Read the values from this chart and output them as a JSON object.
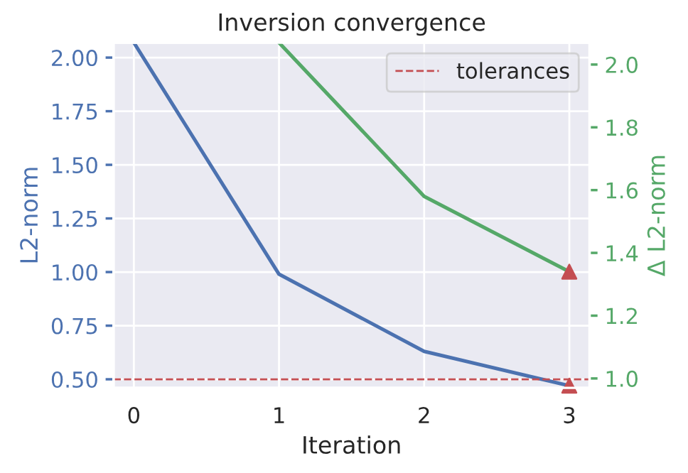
{
  "chart_data": {
    "type": "line",
    "title": "Inversion convergence",
    "xlabel": "Iteration",
    "ylabel": "L2-norm",
    "y2label": "Δ L2-norm",
    "x": [
      0,
      1,
      2,
      3
    ],
    "series": [
      {
        "color": "#4c72b0",
        "values": [
          2.07,
          0.99,
          0.63,
          0.47
        ]
      },
      {
        "color": "#55a868",
        "axis": "y2",
        "values": [
          null,
          2.07,
          1.58,
          1.34
        ]
      },
      {
        "type": "scatter",
        "color": "#c44e52",
        "marker": "triangle",
        "x": [
          3
        ],
        "values": [
          0.47
        ]
      },
      {
        "type": "scatter",
        "color": "#c44e52",
        "marker": "triangle",
        "axis": "y2",
        "x": [
          3
        ],
        "values": [
          1.34
        ]
      }
    ],
    "ref_lines": [
      {
        "axis": "y",
        "value": 0.5,
        "label": "tolerances",
        "color": "#c44e52",
        "line_style": "dashed"
      }
    ],
    "xlim": [
      -0.14,
      3.14
    ],
    "xticks": [
      0,
      1,
      2,
      3
    ],
    "ylim": [
      0.46,
      2.07
    ],
    "yticks": [
      {
        "value": 0.5,
        "label": "0.50"
      },
      {
        "value": 0.75,
        "label": "0.75"
      },
      {
        "value": 1.0,
        "label": "1.00"
      },
      {
        "value": 1.25,
        "label": "1.25"
      },
      {
        "value": 1.5,
        "label": "1.50"
      },
      {
        "value": 1.75,
        "label": "1.75"
      },
      {
        "value": 2.0,
        "label": "2.00"
      }
    ],
    "y2lim": [
      0.97,
      2.07
    ],
    "y2ticks": [
      {
        "value": 1.0,
        "label": "1.0"
      },
      {
        "value": 1.2,
        "label": "1.2"
      },
      {
        "value": 1.4,
        "label": "1.4"
      },
      {
        "value": 1.6,
        "label": "1.6"
      },
      {
        "value": 1.8,
        "label": "1.8"
      },
      {
        "value": 2.0,
        "label": "2.0"
      }
    ],
    "grid": true,
    "legend": "top right"
  }
}
